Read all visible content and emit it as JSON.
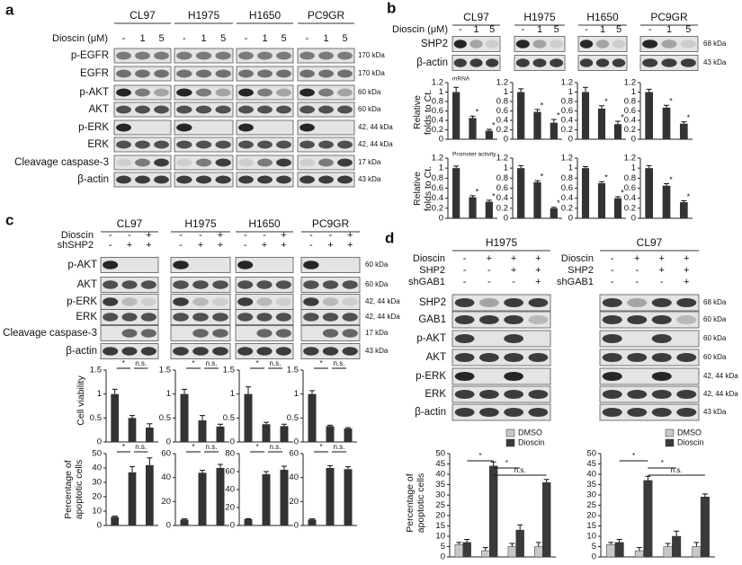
{
  "panels": {
    "a": {
      "label": "a",
      "cell_lines": [
        "CL97",
        "H1975",
        "H1650",
        "PC9GR"
      ],
      "treatments": [
        {
          "name": "Dioscin (μM)",
          "lanes": [
            "-",
            "1",
            "5"
          ]
        }
      ],
      "blots": [
        {
          "protein": "p-EGFR",
          "size": "170 kDa"
        },
        {
          "protein": "EGFR",
          "size": "170 kDa"
        },
        {
          "protein": "p-AKT",
          "size": "60 kDa"
        },
        {
          "protein": "AKT",
          "size": "60 kDa"
        },
        {
          "protein": "p-ERK",
          "size": "42, 44 kDa"
        },
        {
          "protein": "ERK",
          "size": "42, 44 kDa"
        },
        {
          "protein": "Cleavage caspase-3",
          "size": "17 kDa"
        },
        {
          "protein": "β-actin",
          "size": "43 kDa"
        }
      ]
    },
    "b": {
      "label": "b",
      "cell_lines": [
        "CL97",
        "H1975",
        "H1650",
        "PC9GR"
      ],
      "treatments": [
        {
          "name": "Dioscin (μM)",
          "lanes": [
            "-",
            "1",
            "5"
          ]
        }
      ],
      "blots": [
        {
          "protein": "SHP2",
          "size": "68 kDa"
        },
        {
          "protein": "β-actin",
          "size": "43 kDa"
        }
      ],
      "y_label": "Relative folds to Ct."
    },
    "c": {
      "label": "c",
      "cell_lines": [
        "CL97",
        "H1975",
        "H1650",
        "PC9GR"
      ],
      "treatments": [
        {
          "name": "Dioscin",
          "lanes": [
            "-",
            "-",
            "+"
          ]
        },
        {
          "name": "shSHP2",
          "lanes": [
            "-",
            "+",
            "+"
          ]
        }
      ],
      "blots": [
        {
          "protein": "p-AKT",
          "size": "60 kDa"
        },
        {
          "protein": "AKT",
          "size": "60 kDa"
        },
        {
          "protein": "p-ERK",
          "size": "42, 44 kDa"
        },
        {
          "protein": "ERK",
          "size": "42, 44 kDa"
        },
        {
          "protein": "Cleavage caspase-3",
          "size": "17 kDa"
        },
        {
          "protein": "β-actin",
          "size": "43 kDa"
        }
      ],
      "viability_label": "Cell viability",
      "apoptosis_label": "Percentage of apoptotic cells"
    },
    "d": {
      "label": "d",
      "cell_lines": [
        "H1975",
        "CL97"
      ],
      "treatments": [
        {
          "name": "Dioscin",
          "lanes": [
            "-",
            "+",
            "+",
            "+"
          ]
        },
        {
          "name": "SHP2",
          "lanes": [
            "-",
            "-",
            "+",
            "+"
          ]
        },
        {
          "name": "shGAB1",
          "lanes": [
            "-",
            "-",
            "-",
            "+"
          ]
        }
      ],
      "blots": [
        {
          "protein": "SHP2",
          "size": "68 kDa"
        },
        {
          "protein": "GAB1",
          "size": "60 kDa"
        },
        {
          "protein": "p-AKT",
          "size": "60 kDa"
        },
        {
          "protein": "AKT",
          "size": "60 kDa"
        },
        {
          "protein": "p-ERK",
          "size": "42, 44 kDa"
        },
        {
          "protein": "ERK",
          "size": "42, 44 kDa"
        },
        {
          "protein": "β-actin",
          "size": "43 kDa"
        }
      ],
      "y_label": "Percentage of apoptotic cells"
    }
  },
  "chart_data": [
    {
      "type": "bar",
      "annotation": "mRNA",
      "categories": [
        null,
        null,
        null
      ],
      "values": [
        1.0,
        0.45,
        0.18
      ],
      "errors": [
        0.1,
        0.04,
        0.03
      ],
      "color": "#333333",
      "ylim": [
        0,
        1.2
      ],
      "yticks": [
        0,
        0.2,
        0.4,
        0.6,
        0.8,
        1,
        1.2
      ],
      "significance": [
        null,
        "*",
        "*"
      ]
    },
    {
      "type": "bar",
      "categories": [
        null,
        null,
        null
      ],
      "values": [
        1.0,
        0.58,
        0.35
      ],
      "errors": [
        0.07,
        0.05,
        0.07
      ],
      "color": "#333333",
      "ylim": [
        0,
        1.2
      ],
      "yticks": [
        0,
        0.2,
        0.4,
        0.6,
        0.8,
        1,
        1.2
      ],
      "significance": [
        null,
        "*",
        "*"
      ]
    },
    {
      "type": "bar",
      "categories": [
        null,
        null,
        null
      ],
      "values": [
        1.0,
        0.65,
        0.32
      ],
      "errors": [
        0.1,
        0.06,
        0.06
      ],
      "color": "#333333",
      "ylim": [
        0,
        1.2
      ],
      "yticks": [
        0,
        0.2,
        0.4,
        0.6,
        0.8,
        1,
        1.2
      ],
      "significance": [
        null,
        "*",
        "*"
      ]
    },
    {
      "type": "bar",
      "categories": [
        null,
        null,
        null
      ],
      "values": [
        1.0,
        0.67,
        0.33
      ],
      "errors": [
        0.06,
        0.05,
        0.04
      ],
      "color": "#333333",
      "ylim": [
        0,
        1.2
      ],
      "yticks": [
        0,
        0.2,
        0.4,
        0.6,
        0.8,
        1,
        1.2
      ],
      "significance": [
        null,
        "*",
        "*"
      ]
    },
    {
      "type": "bar",
      "annotation": "Promoter activity",
      "categories": [
        null,
        null,
        null
      ],
      "values": [
        1.0,
        0.42,
        0.33
      ],
      "errors": [
        0.04,
        0.03,
        0.03
      ],
      "color": "#333333",
      "ylim": [
        0,
        1.2
      ],
      "yticks": [
        0,
        0.2,
        0.4,
        0.6,
        0.8,
        1,
        1.2
      ],
      "significance": [
        null,
        "*",
        "*"
      ]
    },
    {
      "type": "bar",
      "categories": [
        null,
        null,
        null
      ],
      "values": [
        1.0,
        0.72,
        0.2
      ],
      "errors": [
        0.05,
        0.03,
        0.02
      ],
      "color": "#333333",
      "ylim": [
        0,
        1.2
      ],
      "yticks": [
        0,
        0.2,
        0.4,
        0.6,
        0.8,
        1,
        1.2
      ],
      "significance": [
        null,
        "*",
        "*"
      ]
    },
    {
      "type": "bar",
      "categories": [
        null,
        null,
        null
      ],
      "values": [
        1.0,
        0.7,
        0.4
      ],
      "errors": [
        0.03,
        0.03,
        0.03
      ],
      "color": "#333333",
      "ylim": [
        0,
        1.2
      ],
      "yticks": [
        0,
        0.2,
        0.4,
        0.6,
        0.8,
        1,
        1.2
      ],
      "significance": [
        null,
        "*",
        "*"
      ]
    },
    {
      "type": "bar",
      "categories": [
        null,
        null,
        null
      ],
      "values": [
        1.0,
        0.65,
        0.32
      ],
      "errors": [
        0.05,
        0.04,
        0.03
      ],
      "color": "#333333",
      "ylim": [
        0,
        1.2
      ],
      "yticks": [
        0,
        0.2,
        0.4,
        0.6,
        0.8,
        1,
        1.2
      ],
      "significance": [
        null,
        "*",
        "*"
      ]
    },
    {
      "type": "bar",
      "categories": [
        null,
        null,
        null
      ],
      "values": [
        1.0,
        0.5,
        0.3
      ],
      "errors": [
        0.1,
        0.05,
        0.08
      ],
      "color": "#333333",
      "ylim": [
        0,
        1.5
      ],
      "yticks": [
        0,
        0.5,
        1,
        1.5
      ],
      "significance": [
        "*",
        "n.s."
      ]
    },
    {
      "type": "bar",
      "categories": [
        null,
        null,
        null
      ],
      "values": [
        1.0,
        0.45,
        0.32
      ],
      "errors": [
        0.1,
        0.1,
        0.05
      ],
      "color": "#333333",
      "ylim": [
        0,
        1.5
      ],
      "yticks": [
        0,
        0.5,
        1,
        1.5
      ],
      "significance": [
        "*",
        "n.s."
      ]
    },
    {
      "type": "bar",
      "categories": [
        null,
        null,
        null
      ],
      "values": [
        1.0,
        0.37,
        0.33
      ],
      "errors": [
        0.15,
        0.04,
        0.04
      ],
      "color": "#333333",
      "ylim": [
        0,
        1.5
      ],
      "yticks": [
        0,
        0.5,
        1,
        1.5
      ],
      "significance": [
        "*",
        "n.s."
      ]
    },
    {
      "type": "bar",
      "categories": [
        null,
        null,
        null
      ],
      "values": [
        1.0,
        0.33,
        0.28
      ],
      "errors": [
        0.07,
        0.02,
        0.02
      ],
      "color": "#333333",
      "ylim": [
        0,
        1.5
      ],
      "yticks": [
        0,
        0.5,
        1,
        1.5
      ],
      "significance": [
        "*",
        "n.s."
      ]
    },
    {
      "type": "bar",
      "categories": [
        null,
        null,
        null
      ],
      "values": [
        6,
        37,
        42
      ],
      "errors": [
        0.5,
        4,
        5
      ],
      "color": "#333333",
      "ylim": [
        0,
        50
      ],
      "yticks": [
        0,
        10,
        20,
        30,
        40,
        50
      ],
      "significance": [
        "*",
        "n.s."
      ]
    },
    {
      "type": "bar",
      "categories": [
        null,
        null,
        null
      ],
      "values": [
        5,
        44,
        48
      ],
      "errors": [
        0.5,
        2,
        3
      ],
      "color": "#333333",
      "ylim": [
        0,
        60
      ],
      "yticks": [
        0,
        20,
        40,
        60
      ],
      "significance": [
        "*",
        "n.s."
      ]
    },
    {
      "type": "bar",
      "categories": [
        null,
        null,
        null
      ],
      "values": [
        7,
        57,
        62
      ],
      "errors": [
        0.5,
        3,
        4
      ],
      "color": "#333333",
      "ylim": [
        0,
        80
      ],
      "yticks": [
        0,
        20,
        40,
        60,
        80
      ],
      "significance": [
        "*",
        "n.s."
      ]
    },
    {
      "type": "bar",
      "categories": [
        null,
        null,
        null
      ],
      "values": [
        5,
        48,
        47
      ],
      "errors": [
        0.5,
        2,
        2
      ],
      "color": "#333333",
      "ylim": [
        0,
        60
      ],
      "yticks": [
        0,
        20,
        40,
        60
      ],
      "significance": [
        "*",
        "n.s."
      ]
    },
    {
      "type": "grouped_bar",
      "categories": [
        null,
        null,
        null,
        null
      ],
      "series": [
        {
          "name": "DMSO",
          "color": "#c8c8c8",
          "values": [
            6,
            3,
            5,
            5
          ],
          "errors": [
            1,
            1.5,
            1.5,
            2
          ]
        },
        {
          "name": "Dioscin",
          "color": "#3a3a3a",
          "values": [
            7,
            44,
            13,
            36
          ],
          "errors": [
            1.5,
            2,
            2.5,
            1.5
          ]
        }
      ],
      "ylim": [
        0,
        50
      ],
      "yticks": [
        0,
        5,
        10,
        15,
        20,
        25,
        30,
        35,
        40,
        45,
        50
      ],
      "legend": "top-right",
      "significance": [
        "*",
        "*",
        "n.s."
      ]
    },
    {
      "type": "grouped_bar",
      "categories": [
        null,
        null,
        null,
        null
      ],
      "series": [
        {
          "name": "DMSO",
          "color": "#c8c8c8",
          "values": [
            6,
            3,
            5,
            5
          ],
          "errors": [
            1,
            1.5,
            1.5,
            2
          ]
        },
        {
          "name": "Dioscin",
          "color": "#3a3a3a",
          "values": [
            7,
            37,
            10,
            29
          ],
          "errors": [
            1.5,
            2,
            2.5,
            1.5
          ]
        }
      ],
      "ylim": [
        0,
        50
      ],
      "yticks": [
        0,
        5,
        10,
        15,
        20,
        25,
        30,
        35,
        40,
        45,
        50
      ],
      "legend": "top-right",
      "significance": [
        "*",
        "*",
        "n.s."
      ]
    }
  ]
}
